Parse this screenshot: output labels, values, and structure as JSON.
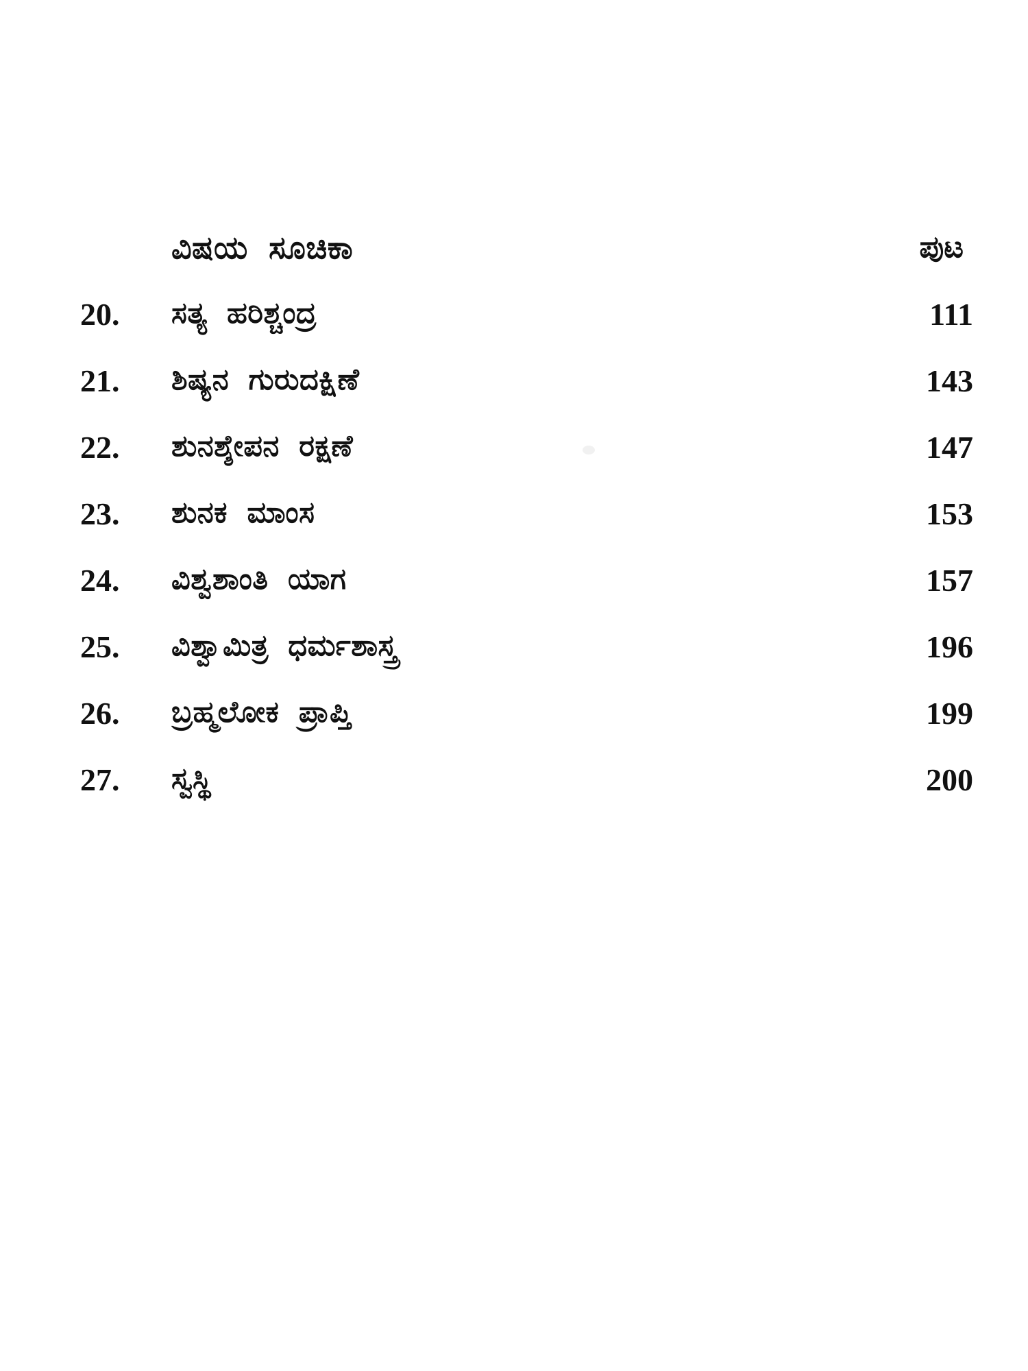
{
  "header": {
    "title": "ವಿಷಯ ಸೂಚಿಕಾ",
    "page_label": "ಪುಟ"
  },
  "toc": {
    "items": [
      {
        "num": "20.",
        "title": "ಸತ್ಯ ಹರಿಶ್ಚಂದ್ರ",
        "page": "111"
      },
      {
        "num": "21.",
        "title": "ಶಿಷ್ಯನ ಗುರುದಕ್ಷಿಣೆ",
        "page": "143"
      },
      {
        "num": "22.",
        "title": "ಶುನಶ್ಶೇಪನ ರಕ್ಷಣೆ",
        "page": "147"
      },
      {
        "num": "23.",
        "title": "ಶುನಕ ಮಾಂಸ",
        "page": "153"
      },
      {
        "num": "24.",
        "title": "ವಿಶ್ವಶಾಂತಿ ಯಾಗ",
        "page": "157"
      },
      {
        "num": "25.",
        "title": "ವಿಶ್ವಾಮಿತ್ರ ಧರ್ಮಶಾಸ್ತ್ರ",
        "page": "196"
      },
      {
        "num": "26.",
        "title": "ಬ್ರಹ್ಮಲೋಕ ಪ್ರಾಪ್ತಿ",
        "page": "199"
      },
      {
        "num": "27.",
        "title": "ಸ್ವಸ್ಥಿ",
        "page": "200"
      }
    ]
  },
  "colors": {
    "background": "#ffffff",
    "text": "#111111"
  }
}
